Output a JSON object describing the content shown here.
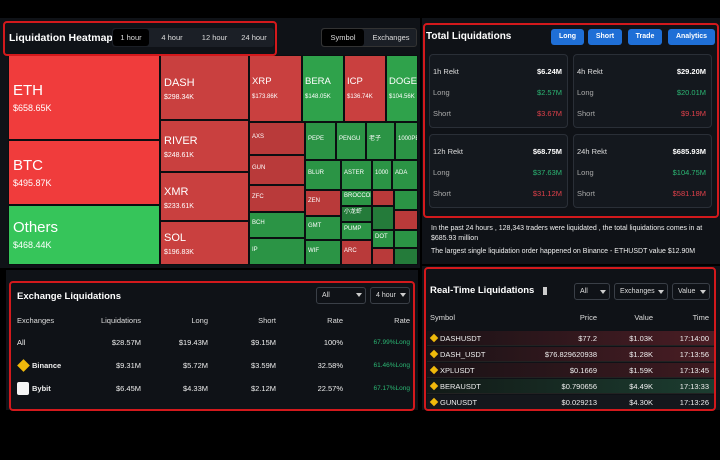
{
  "heatmap": {
    "title": "Liquidation Heatmap",
    "timeframes": [
      "1 hour",
      "4 hour",
      "12 hour",
      "24 hour"
    ],
    "views": [
      "Symbol",
      "Exchanges"
    ],
    "cells": [
      {
        "symbol": "ETH",
        "value": "$658.65K"
      },
      {
        "symbol": "BTC",
        "value": "$495.87K"
      },
      {
        "symbol": "Others",
        "value": "$468.44K"
      },
      {
        "symbol": "DASH",
        "value": "$298.34K"
      },
      {
        "symbol": "RIVER",
        "value": "$248.61K"
      },
      {
        "symbol": "XMR",
        "value": "$233.61K"
      },
      {
        "symbol": "SOL",
        "value": "$196.83K"
      },
      {
        "symbol": "XRP",
        "value": "$173.86K"
      },
      {
        "symbol": "BERA",
        "value": "$148.05K"
      },
      {
        "symbol": "ICP",
        "value": "$136.74K"
      },
      {
        "symbol": "DOGE",
        "value": "$104.56K"
      },
      {
        "symbol": "AXS"
      },
      {
        "symbol": "GUN"
      },
      {
        "symbol": "ZFC"
      },
      {
        "symbol": "BCH"
      },
      {
        "symbol": "IP"
      },
      {
        "symbol": "PEPE"
      },
      {
        "symbol": "PENGU"
      },
      {
        "symbol": "老子"
      },
      {
        "symbol": "1000PEPE"
      },
      {
        "symbol": "BLUR"
      },
      {
        "symbol": "ASTER"
      },
      {
        "symbol": "1000"
      },
      {
        "symbol": "ADA"
      },
      {
        "symbol": "ZEN"
      },
      {
        "symbol": "BROCCOLI"
      },
      {
        "symbol": "小龙虾"
      },
      {
        "symbol": "GMT"
      },
      {
        "symbol": "PUMP"
      },
      {
        "symbol": "WIF"
      },
      {
        "symbol": "ARC"
      },
      {
        "symbol": "DOT"
      }
    ]
  },
  "total": {
    "title": "Total Liquidations",
    "buttons": [
      "Long",
      "Short",
      "Trade",
      "Analytics"
    ],
    "cards": [
      {
        "label": "1h Rekt",
        "total": "$6.24M",
        "long_label": "Long",
        "long": "$2.57M",
        "short_label": "Short",
        "short": "$3.67M"
      },
      {
        "label": "4h Rekt",
        "total": "$29.20M",
        "long_label": "Long",
        "long": "$20.01M",
        "short_label": "Short",
        "short": "$9.19M"
      },
      {
        "label": "12h Rekt",
        "total": "$68.75M",
        "long_label": "Long",
        "long": "$37.63M",
        "short_label": "Short",
        "short": "$31.12M"
      },
      {
        "label": "24h Rekt",
        "total": "$685.93M",
        "long_label": "Long",
        "long": "$104.75M",
        "short_label": "Short",
        "short": "$581.18M"
      }
    ],
    "summary": [
      "In the past 24 hours , 128,343 traders were liquidated , the total liquidations comes in at $685.93 million",
      "The largest single liquidation order happened on Binance - ETHUSDT value $12.90M"
    ]
  },
  "exchange": {
    "title": "Exchange Liquidations",
    "filters": [
      "All",
      "4 hour"
    ],
    "columns": [
      "Exchanges",
      "Liquidations",
      "Long",
      "Short",
      "Rate",
      "Rate"
    ],
    "rows": [
      [
        "All",
        "$28.57M",
        "$19.43M",
        "$9.15M",
        "100%",
        "67.99%Long"
      ],
      [
        "Binance",
        "$9.31M",
        "$5.72M",
        "$3.59M",
        "32.58%",
        "61.46%Long"
      ],
      [
        "Bybit",
        "$6.45M",
        "$4.33M",
        "$2.12M",
        "22.57%",
        "67.17%Long"
      ]
    ]
  },
  "realtime": {
    "title": "Real-Time Liquidations",
    "filters": [
      "All",
      "Exchanges",
      "Value"
    ],
    "columns": [
      "Symbol",
      "Price",
      "Value",
      "Time"
    ],
    "rows": [
      [
        "DASHUSDT",
        "$77.2",
        "$1.03K",
        "17:14:00"
      ],
      [
        "DASH_USDT",
        "$76.829620938",
        "$1.28K",
        "17:13:56"
      ],
      [
        "XPLUSDT",
        "$0.1669",
        "$1.59K",
        "17:13:45"
      ],
      [
        "BERAUSDT",
        "$0.790656",
        "$4.49K",
        "17:13:33"
      ],
      [
        "GUNUSDT",
        "$0.029213",
        "$4.30K",
        "17:13:26"
      ]
    ]
  }
}
